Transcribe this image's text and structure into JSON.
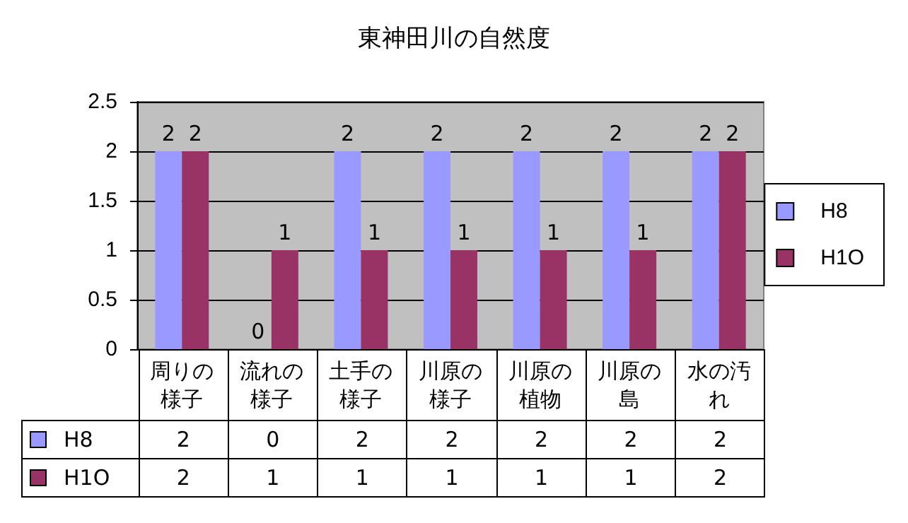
{
  "chart_data": {
    "type": "bar",
    "title": "東神田川の自然度",
    "categories": [
      "周りの様子",
      "流れの様子",
      "土手の様子",
      "川原の様子",
      "川原の植物",
      "川原の島",
      "水の汚れ"
    ],
    "series": [
      {
        "name": "H8",
        "color": "#9999ff",
        "values": [
          2,
          0,
          2,
          2,
          2,
          2,
          2
        ],
        "value_labels": [
          "2",
          "0",
          "2",
          "2",
          "2",
          "2",
          "2"
        ]
      },
      {
        "name": "H1O",
        "color": "#993366",
        "values": [
          2,
          1,
          1,
          1,
          1,
          1,
          2
        ],
        "value_labels": [
          "2",
          "1",
          "1",
          "1",
          "1",
          "1",
          "2"
        ]
      }
    ],
    "ylim": [
      0,
      2.5
    ],
    "yticks": [
      0,
      0.5,
      1,
      1.5,
      2,
      2.5
    ],
    "grid": "y",
    "legend": "right",
    "data_labels": true
  }
}
